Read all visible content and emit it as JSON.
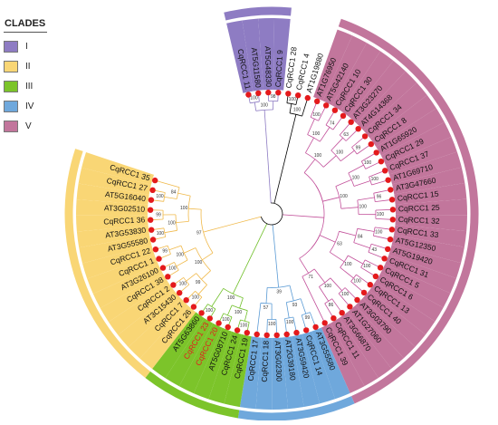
{
  "legend": {
    "title": "CLADES",
    "items": [
      {
        "label": "I",
        "color": "#8e7cc3"
      },
      {
        "label": "II",
        "color": "#f9d675"
      },
      {
        "label": "III",
        "color": "#7cc42a"
      },
      {
        "label": "IV",
        "color": "#6fa8dc"
      },
      {
        "label": "V",
        "color": "#c2769c"
      }
    ]
  },
  "tree": {
    "highlight_color": "#e41a1c",
    "node_color": "#e41a1c",
    "leaves": [
      {
        "name": "CqRCC1 11",
        "clade": "I"
      },
      {
        "name": "AT5G11580",
        "clade": "I"
      },
      {
        "name": "AT5G48330",
        "clade": "I"
      },
      {
        "name": "CqRCC1 9",
        "clade": "I"
      },
      {
        "name": "CqRCC1 28",
        "clade": "none"
      },
      {
        "name": "CqRCC1 4",
        "clade": "none"
      },
      {
        "name": "AT1G19880",
        "clade": "none"
      },
      {
        "name": "AT1G76950",
        "clade": "V"
      },
      {
        "name": "AT5G42140",
        "clade": "V"
      },
      {
        "name": "CqRCC1 10",
        "clade": "V"
      },
      {
        "name": "CqRCC1 30",
        "clade": "V"
      },
      {
        "name": "AT3G23270",
        "clade": "V"
      },
      {
        "name": "AT4G14368",
        "clade": "V"
      },
      {
        "name": "CqRCC1 34",
        "clade": "V"
      },
      {
        "name": "CqRCC1 8",
        "clade": "V"
      },
      {
        "name": "AT1G65920",
        "clade": "V"
      },
      {
        "name": "CqRCC1 29",
        "clade": "V"
      },
      {
        "name": "CqRCC1 37",
        "clade": "V"
      },
      {
        "name": "AT1G69710",
        "clade": "V"
      },
      {
        "name": "AT3G47660",
        "clade": "V"
      },
      {
        "name": "CqRCC1 15",
        "clade": "V"
      },
      {
        "name": "CqRCC1 25",
        "clade": "V"
      },
      {
        "name": "CqRCC1 32",
        "clade": "V"
      },
      {
        "name": "CqRCC1 33",
        "clade": "V"
      },
      {
        "name": "AT5G12350",
        "clade": "V"
      },
      {
        "name": "AT5G19420",
        "clade": "V"
      },
      {
        "name": "CqRCC1 31",
        "clade": "V"
      },
      {
        "name": "CqRCC1 5",
        "clade": "V"
      },
      {
        "name": "CqRCC1 6",
        "clade": "V"
      },
      {
        "name": "CqRCC1 13",
        "clade": "V"
      },
      {
        "name": "CqRCC1 40",
        "clade": "V"
      },
      {
        "name": "AT3G03790",
        "clade": "V"
      },
      {
        "name": "AT1G27060",
        "clade": "V"
      },
      {
        "name": "AT3G66870",
        "clade": "V"
      },
      {
        "name": "CqRCC1 11",
        "clade": "V"
      },
      {
        "name": "CqRCC1 39",
        "clade": "V"
      },
      {
        "name": "AT3G55580",
        "clade": "IV"
      },
      {
        "name": "CqRCC1 14",
        "clade": "IV"
      },
      {
        "name": "AT3G59420",
        "clade": "IV"
      },
      {
        "name": "AT2G39180",
        "clade": "IV"
      },
      {
        "name": "AT3G02300",
        "clade": "IV"
      },
      {
        "name": "CqRCC1 18",
        "clade": "IV"
      },
      {
        "name": "CqRCC1 17",
        "clade": "IV"
      },
      {
        "name": "CqRCC1 19",
        "clade": "III"
      },
      {
        "name": "CqRCC1 24",
        "clade": "III"
      },
      {
        "name": "AT5G08710",
        "clade": "III"
      },
      {
        "name": "CqRCC1 20",
        "clade": "III",
        "highlight": true
      },
      {
        "name": "CqRCC1 23",
        "clade": "III",
        "highlight": true
      },
      {
        "name": "AT5G63860",
        "clade": "III"
      },
      {
        "name": "CqRCC1 26",
        "clade": "II"
      },
      {
        "name": "CqRCC1 7",
        "clade": "II"
      },
      {
        "name": "AT3C15430",
        "clade": "II"
      },
      {
        "name": "CqRCC1 2",
        "clade": "II"
      },
      {
        "name": "CqRCC1 38",
        "clade": "II"
      },
      {
        "name": "AT3G26100",
        "clade": "II"
      },
      {
        "name": "CqRCC1 1",
        "clade": "II"
      },
      {
        "name": "CqRCC1 22",
        "clade": "II"
      },
      {
        "name": "AT3G55580",
        "clade": "II"
      },
      {
        "name": "AT3G53830",
        "clade": "II"
      },
      {
        "name": "CqRCC1 36",
        "clade": "II"
      },
      {
        "name": "AT3G02510",
        "clade": "II"
      },
      {
        "name": "AT5G16040",
        "clade": "II"
      },
      {
        "name": "CqRCC1 27",
        "clade": "II"
      },
      {
        "name": "CqRCC1 35",
        "clade": "II"
      }
    ],
    "bootstrap": [
      "100",
      "98",
      "100",
      "100",
      "100",
      "100",
      "74",
      "63",
      "99",
      "100",
      "100",
      "96",
      "100",
      "100",
      "43",
      "100",
      "100",
      "100",
      "86",
      "100",
      "100",
      "100",
      "100",
      "84",
      "100",
      "100",
      "100",
      "100",
      "63",
      "71",
      "99",
      "100",
      "100",
      "93",
      "57",
      "39",
      "100",
      "100",
      "100",
      "100",
      "100",
      "100",
      "100",
      "100",
      "99",
      "100",
      "99",
      "100",
      "99",
      "100",
      "100",
      "84",
      "100",
      "100",
      "97",
      "55",
      "94",
      "49",
      "100",
      "96",
      "100"
    ]
  }
}
